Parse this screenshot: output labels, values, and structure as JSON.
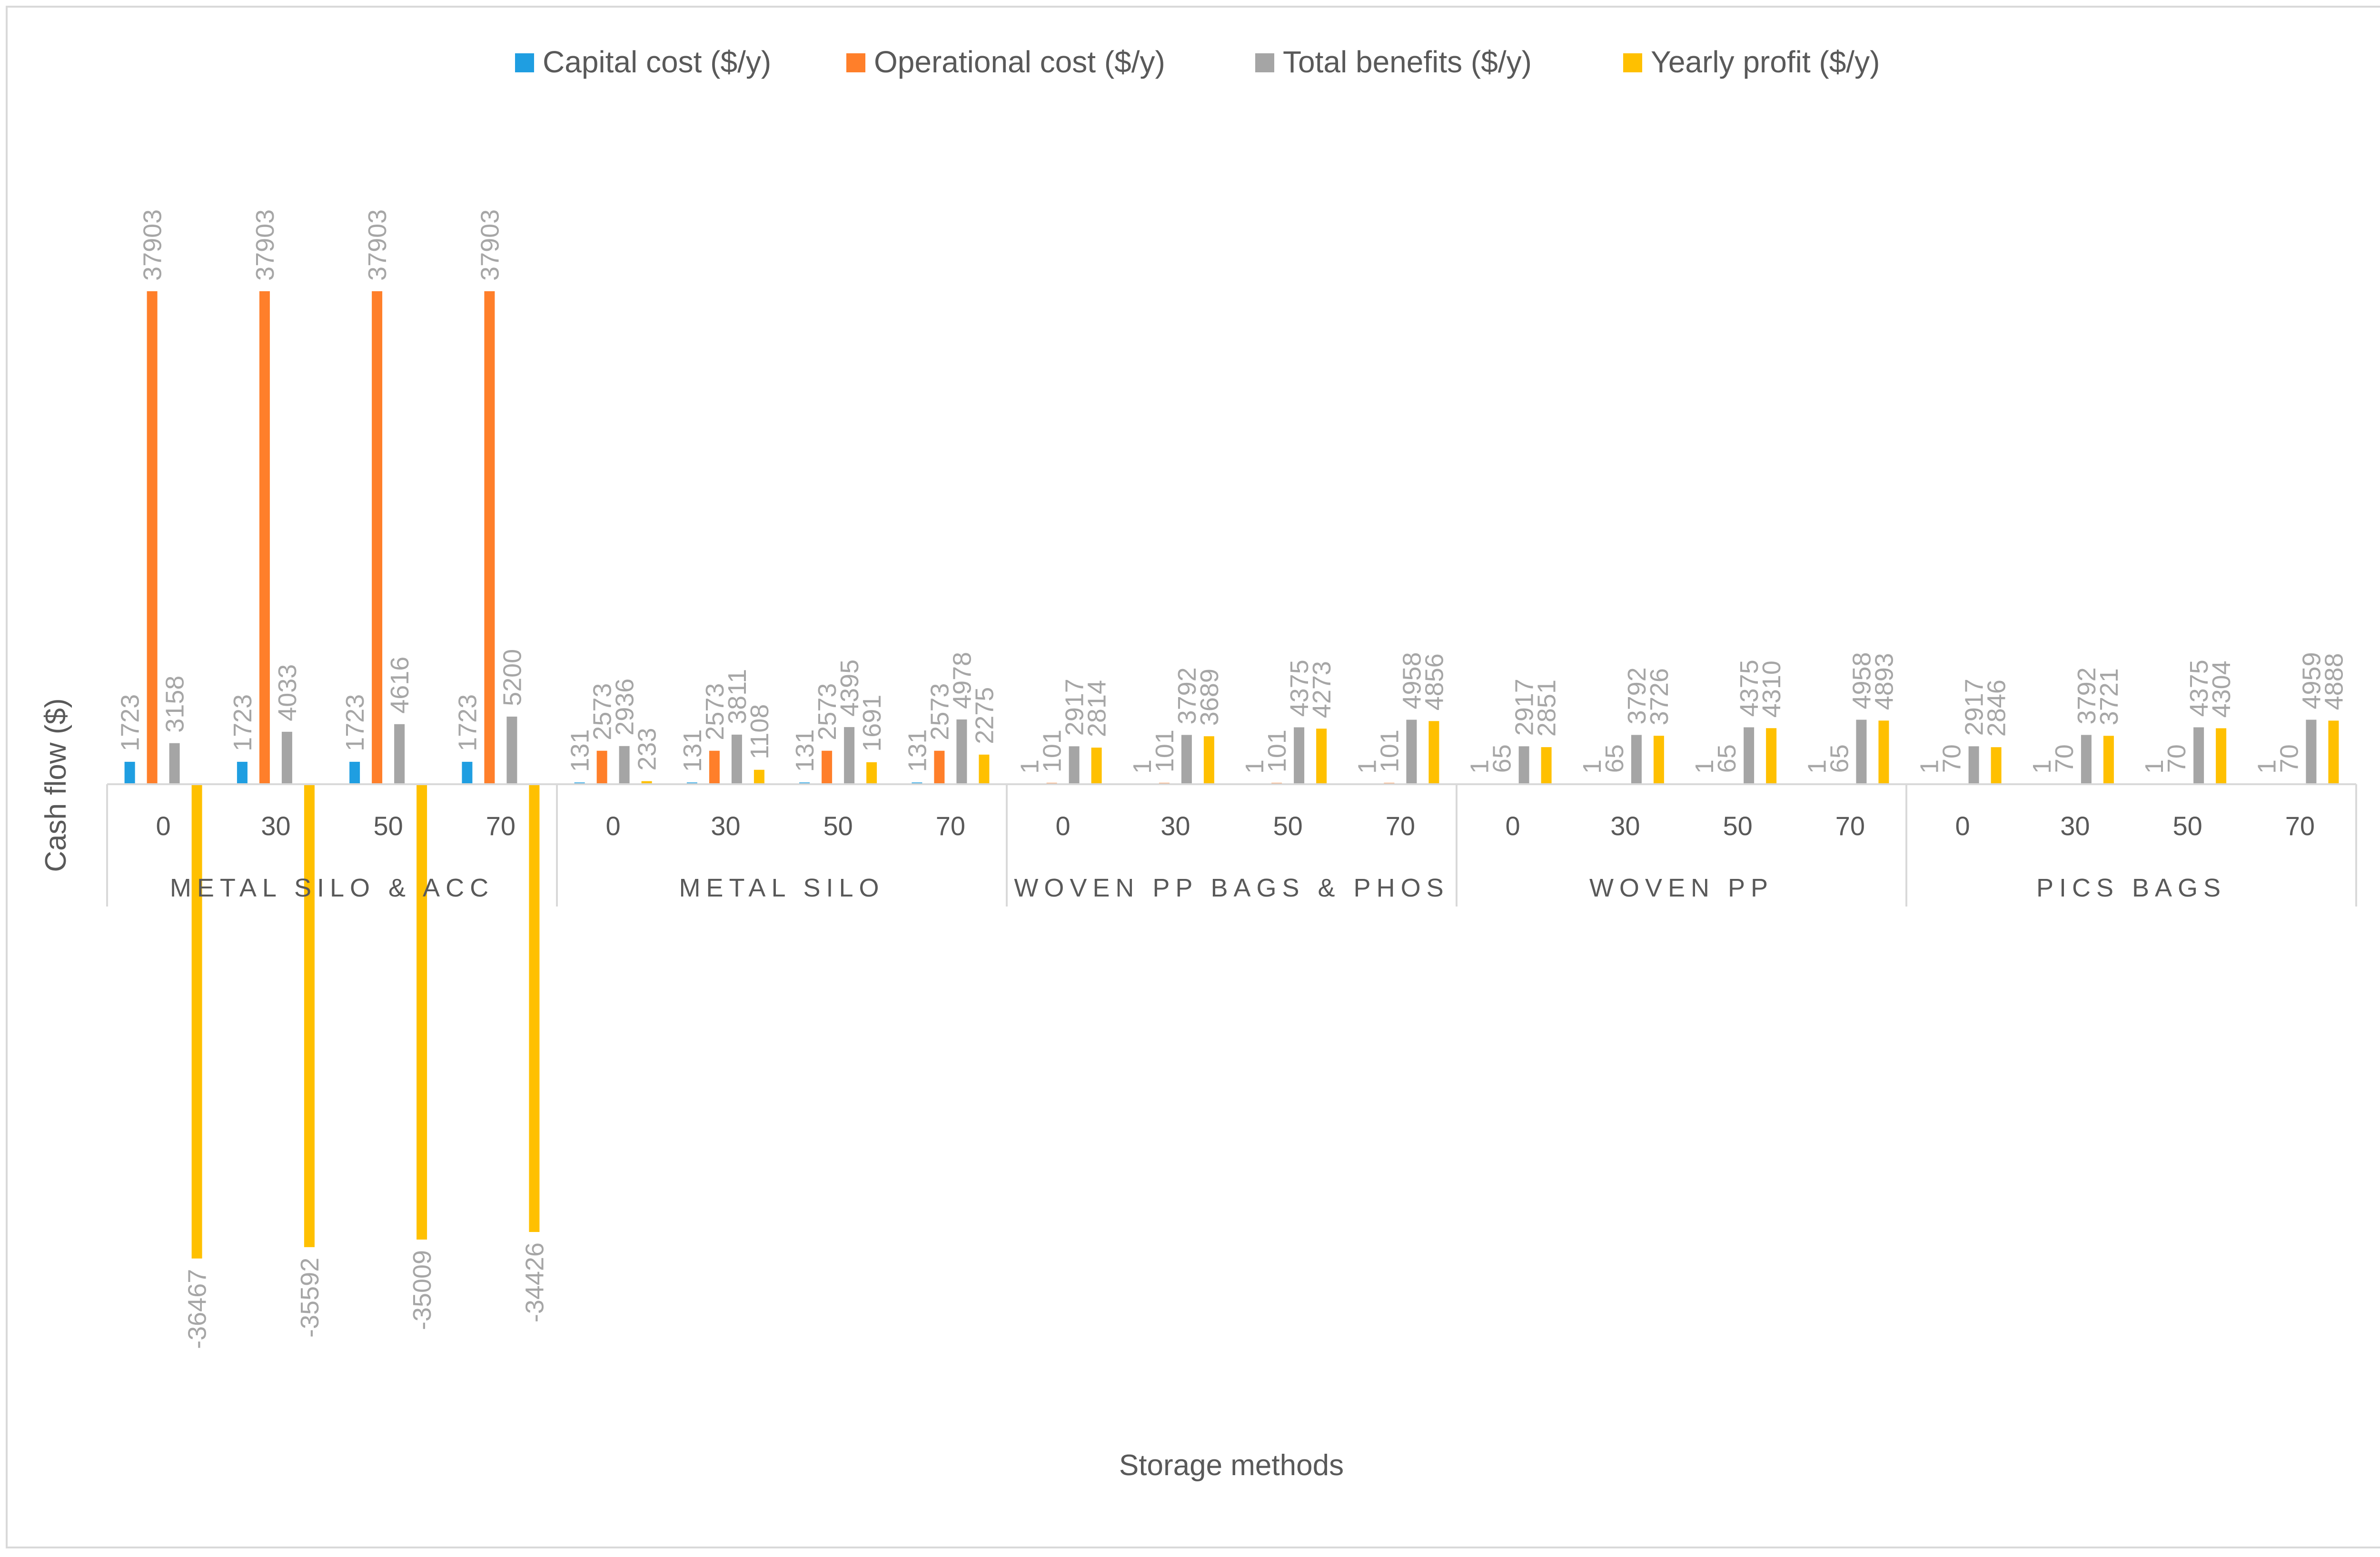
{
  "chart_data": {
    "type": "bar",
    "title": "",
    "xlabel": "Storage methods",
    "ylabel": "Cash flow ($)",
    "ylim": [
      -40000,
      40000
    ],
    "grid": false,
    "legend_position": "top-center",
    "groups": [
      {
        "label": "METAL SILO & ACC",
        "categories": [
          "0",
          "30",
          "50",
          "70"
        ]
      },
      {
        "label": "METAL SILO",
        "categories": [
          "0",
          "30",
          "50",
          "70"
        ]
      },
      {
        "label": "WOVEN PP BAGS & PHOS",
        "categories": [
          "0",
          "30",
          "50",
          "70"
        ]
      },
      {
        "label": "WOVEN PP",
        "categories": [
          "0",
          "30",
          "50",
          "70"
        ]
      },
      {
        "label": "PICS BAGS",
        "categories": [
          "0",
          "30",
          "50",
          "70"
        ]
      }
    ],
    "series": [
      {
        "name": "Capital cost ($/y)",
        "color": "#1f9ee1",
        "values": [
          1723,
          1723,
          1723,
          1723,
          131,
          131,
          131,
          131,
          1,
          1,
          1,
          1,
          1,
          1,
          1,
          1,
          1,
          1,
          1,
          1
        ]
      },
      {
        "name": "Operational cost ($/y)",
        "color": "#ff7f2a",
        "values": [
          37903,
          37903,
          37903,
          37903,
          2573,
          2573,
          2573,
          2573,
          101,
          101,
          101,
          101,
          65,
          65,
          65,
          65,
          70,
          70,
          70,
          70
        ]
      },
      {
        "name": "Total benefits ($/y)",
        "color": "#a5a5a5",
        "values": [
          3158,
          4033,
          4616,
          5200,
          2936,
          3811,
          4395,
          4978,
          2917,
          3792,
          4375,
          4958,
          2917,
          3792,
          4375,
          4958,
          2917,
          3792,
          4375,
          4959
        ]
      },
      {
        "name": "Yearly profit ($/y)",
        "color": "#ffc000",
        "values": [
          -36467,
          -35592,
          -35009,
          -34426,
          233,
          1108,
          1691,
          2275,
          2814,
          3689,
          4273,
          4856,
          2851,
          3726,
          4310,
          4893,
          2846,
          3721,
          4304,
          4888
        ]
      }
    ]
  }
}
